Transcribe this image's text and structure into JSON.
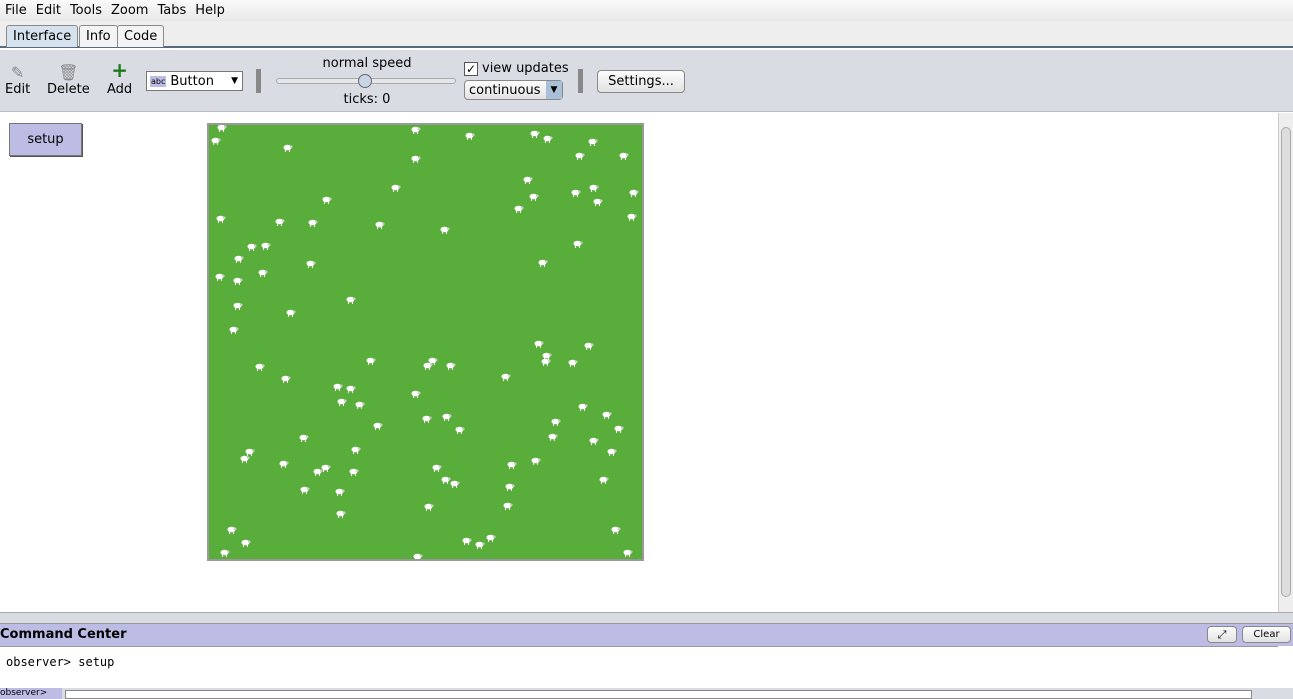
{
  "menu": [
    "File",
    "Edit",
    "Tools",
    "Zoom",
    "Tabs",
    "Help"
  ],
  "tabs": [
    {
      "label": "Interface",
      "active": true
    },
    {
      "label": "Info"
    },
    {
      "label": "Code"
    }
  ],
  "toolbar": {
    "edit": "Edit",
    "delete": "Delete",
    "add": "Add",
    "widget_type": "Button",
    "speed_label": "normal speed",
    "ticks": "ticks: 0",
    "view_updates": "view updates",
    "view_updates_checked": true,
    "update_mode": "continuous",
    "settings": "Settings..."
  },
  "widgets": {
    "setup_button": "setup"
  },
  "view": {
    "background": "#59ad3b",
    "turtle_color": "#ffffff",
    "turtle_shape": "sheep"
  },
  "command_center": {
    "title": "Command Center",
    "clear": "Clear",
    "output": "observer> setup",
    "prompt": "observer>"
  }
}
